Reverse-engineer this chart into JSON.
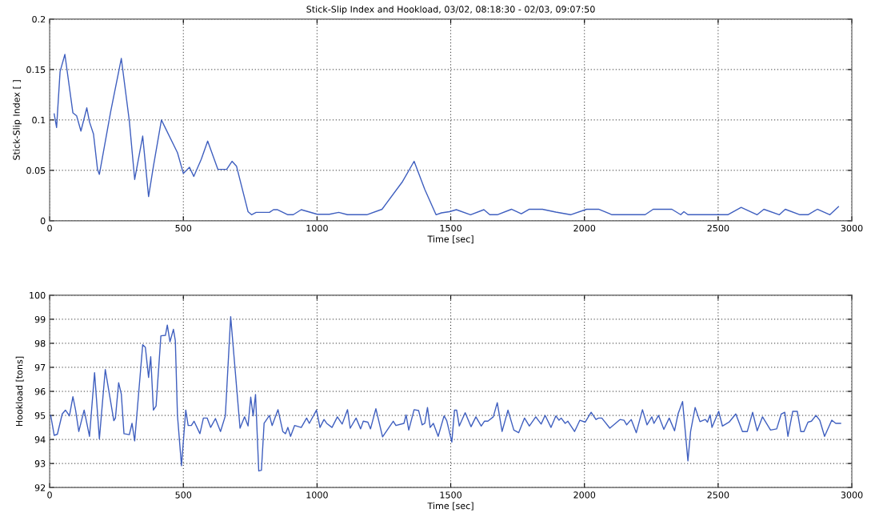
{
  "chart_data": [
    {
      "type": "line",
      "title": "Stick-Slip Index and Hookload, 03/02, 08:18:30 - 02/03, 09:07:50",
      "xlabel": "Time [sec]",
      "ylabel": "Stick-Slip Index [ ]",
      "xlim": [
        0,
        3000
      ],
      "ylim": [
        0,
        0.2
      ],
      "xticks": [
        0,
        500,
        1000,
        1500,
        2000,
        2500,
        3000
      ],
      "yticks": [
        0,
        0.05,
        0.1,
        0.15,
        0.2
      ],
      "grid": true,
      "x": [
        17,
        26,
        39,
        57,
        87,
        101,
        117,
        139,
        149,
        164,
        179,
        186,
        228,
        268,
        298,
        318,
        348,
        370,
        388,
        418,
        478,
        500,
        523,
        539,
        567,
        591,
        629,
        662,
        682,
        699,
        742,
        755,
        772,
        822,
        837,
        851,
        891,
        911,
        941,
        1001,
        1026,
        1046,
        1081,
        1114,
        1186,
        1243,
        1320,
        1363,
        1403,
        1445,
        1465,
        1495,
        1521,
        1574,
        1624,
        1646,
        1674,
        1727,
        1764,
        1794,
        1843,
        1893,
        1948,
        2008,
        2043,
        2053,
        2103,
        2227,
        2257,
        2327,
        2360,
        2372,
        2387,
        2536,
        2586,
        2646,
        2671,
        2729,
        2751,
        2806,
        2836,
        2871,
        2918,
        2950
      ],
      "series": [
        {
          "color": "#3f5fbf",
          "values": [
            0.106,
            0.0925,
            0.148,
            0.165,
            0.107,
            0.104,
            0.089,
            0.112,
            0.098,
            0.086,
            0.051,
            0.046,
            0.108,
            0.161,
            0.099,
            0.041,
            0.084,
            0.024,
            0.054,
            0.1,
            0.0675,
            0.047,
            0.053,
            0.044,
            0.061,
            0.079,
            0.051,
            0.051,
            0.059,
            0.054,
            0.009,
            0.006,
            0.0083,
            0.0083,
            0.011,
            0.011,
            0.006,
            0.006,
            0.011,
            0.0064,
            0.0064,
            0.0064,
            0.0083,
            0.006,
            0.006,
            0.0114,
            0.039,
            0.059,
            0.031,
            0.006,
            0.0078,
            0.009,
            0.011,
            0.006,
            0.011,
            0.006,
            0.006,
            0.0114,
            0.007,
            0.0114,
            0.0114,
            0.0086,
            0.006,
            0.0114,
            0.0114,
            0.0114,
            0.006,
            0.006,
            0.0114,
            0.0114,
            0.006,
            0.009,
            0.006,
            0.006,
            0.0133,
            0.006,
            0.0114,
            0.006,
            0.0114,
            0.006,
            0.006,
            0.0114,
            0.006,
            0.014
          ]
        }
      ]
    },
    {
      "type": "line",
      "xlabel": "Time [sec]",
      "ylabel": "Hookload [tons]",
      "xlim": [
        0,
        3000
      ],
      "ylim": [
        92,
        100
      ],
      "xticks": [
        0,
        500,
        1000,
        1500,
        2000,
        2500,
        3000
      ],
      "yticks": [
        92,
        93,
        94,
        95,
        96,
        97,
        98,
        99,
        100
      ],
      "grid": true,
      "x": [
        4,
        17,
        29,
        47,
        59,
        74,
        87,
        97,
        109,
        129,
        149,
        168,
        186,
        208,
        240,
        246,
        258,
        268,
        278,
        298,
        308,
        318,
        348,
        358,
        370,
        378,
        388,
        398,
        416,
        433,
        440,
        450,
        463,
        470,
        478,
        493,
        509,
        518,
        530,
        540,
        562,
        575,
        589,
        602,
        620,
        639,
        657,
        677,
        712,
        729,
        742,
        752,
        761,
        770,
        782,
        792,
        802,
        822,
        832,
        854,
        872,
        882,
        891,
        901,
        916,
        941,
        961,
        971,
        998,
        1011,
        1026,
        1036,
        1056,
        1076,
        1094,
        1114,
        1124,
        1146,
        1163,
        1173,
        1190,
        1200,
        1220,
        1245,
        1285,
        1295,
        1325,
        1333,
        1343,
        1363,
        1380,
        1393,
        1403,
        1413,
        1423,
        1435,
        1453,
        1475,
        1485,
        1504,
        1514,
        1522,
        1532,
        1554,
        1576,
        1594,
        1614,
        1626,
        1639,
        1659,
        1674,
        1692,
        1714,
        1736,
        1754,
        1776,
        1794,
        1818,
        1838,
        1853,
        1875,
        1893,
        1905,
        1913,
        1928,
        1938,
        1963,
        1983,
        2003,
        2025,
        2043,
        2053,
        2065,
        2095,
        2133,
        2148,
        2158,
        2175,
        2194,
        2217,
        2234,
        2252,
        2260,
        2277,
        2297,
        2317,
        2337,
        2350,
        2367,
        2387,
        2397,
        2414,
        2432,
        2452,
        2460,
        2470,
        2477,
        2502,
        2516,
        2541,
        2566,
        2591,
        2609,
        2629,
        2646,
        2666,
        2696,
        2719,
        2736,
        2749,
        2761,
        2779,
        2796,
        2809,
        2821,
        2836,
        2849,
        2866,
        2880,
        2898,
        2925,
        2940,
        2958
      ],
      "series": [
        {
          "color": "#3f5fbf",
          "values": [
            95.0,
            94.17,
            94.22,
            95.06,
            95.22,
            94.98,
            95.78,
            95.22,
            94.33,
            95.22,
            94.13,
            96.78,
            94.02,
            96.91,
            94.78,
            94.89,
            96.36,
            95.89,
            94.24,
            94.2,
            94.67,
            93.94,
            97.94,
            97.83,
            96.58,
            97.44,
            95.22,
            95.39,
            98.31,
            98.33,
            98.76,
            98.06,
            98.58,
            98.11,
            95.0,
            92.91,
            95.22,
            94.58,
            94.58,
            94.76,
            94.24,
            94.89,
            94.89,
            94.5,
            94.87,
            94.33,
            94.98,
            99.11,
            94.47,
            94.94,
            94.56,
            95.76,
            94.98,
            95.87,
            92.69,
            92.72,
            94.67,
            95.0,
            94.58,
            95.24,
            94.33,
            94.24,
            94.5,
            94.13,
            94.58,
            94.5,
            94.89,
            94.67,
            95.22,
            94.5,
            94.83,
            94.67,
            94.5,
            94.94,
            94.64,
            95.24,
            94.47,
            94.89,
            94.44,
            94.76,
            94.72,
            94.44,
            95.28,
            94.11,
            94.76,
            94.58,
            94.67,
            95.02,
            94.39,
            95.24,
            95.2,
            94.61,
            94.67,
            95.33,
            94.5,
            94.67,
            94.13,
            94.98,
            94.78,
            93.89,
            95.22,
            95.22,
            94.56,
            95.11,
            94.53,
            94.94,
            94.56,
            94.76,
            94.76,
            94.94,
            95.53,
            94.33,
            95.22,
            94.39,
            94.28,
            94.89,
            94.56,
            94.94,
            94.64,
            95.0,
            94.5,
            94.98,
            94.8,
            94.89,
            94.67,
            94.76,
            94.33,
            94.8,
            94.72,
            95.13,
            94.83,
            94.89,
            94.89,
            94.47,
            94.83,
            94.8,
            94.61,
            94.83,
            94.28,
            95.24,
            94.61,
            94.94,
            94.67,
            95.0,
            94.42,
            94.89,
            94.36,
            95.06,
            95.58,
            93.11,
            94.33,
            95.33,
            94.74,
            94.83,
            94.72,
            95.02,
            94.5,
            95.17,
            94.56,
            94.72,
            95.06,
            94.33,
            94.33,
            95.13,
            94.36,
            94.94,
            94.39,
            94.44,
            95.06,
            95.13,
            94.13,
            95.17,
            95.17,
            94.33,
            94.33,
            94.72,
            94.76,
            95.0,
            94.8,
            94.13,
            94.8,
            94.67,
            94.67
          ]
        }
      ]
    }
  ]
}
